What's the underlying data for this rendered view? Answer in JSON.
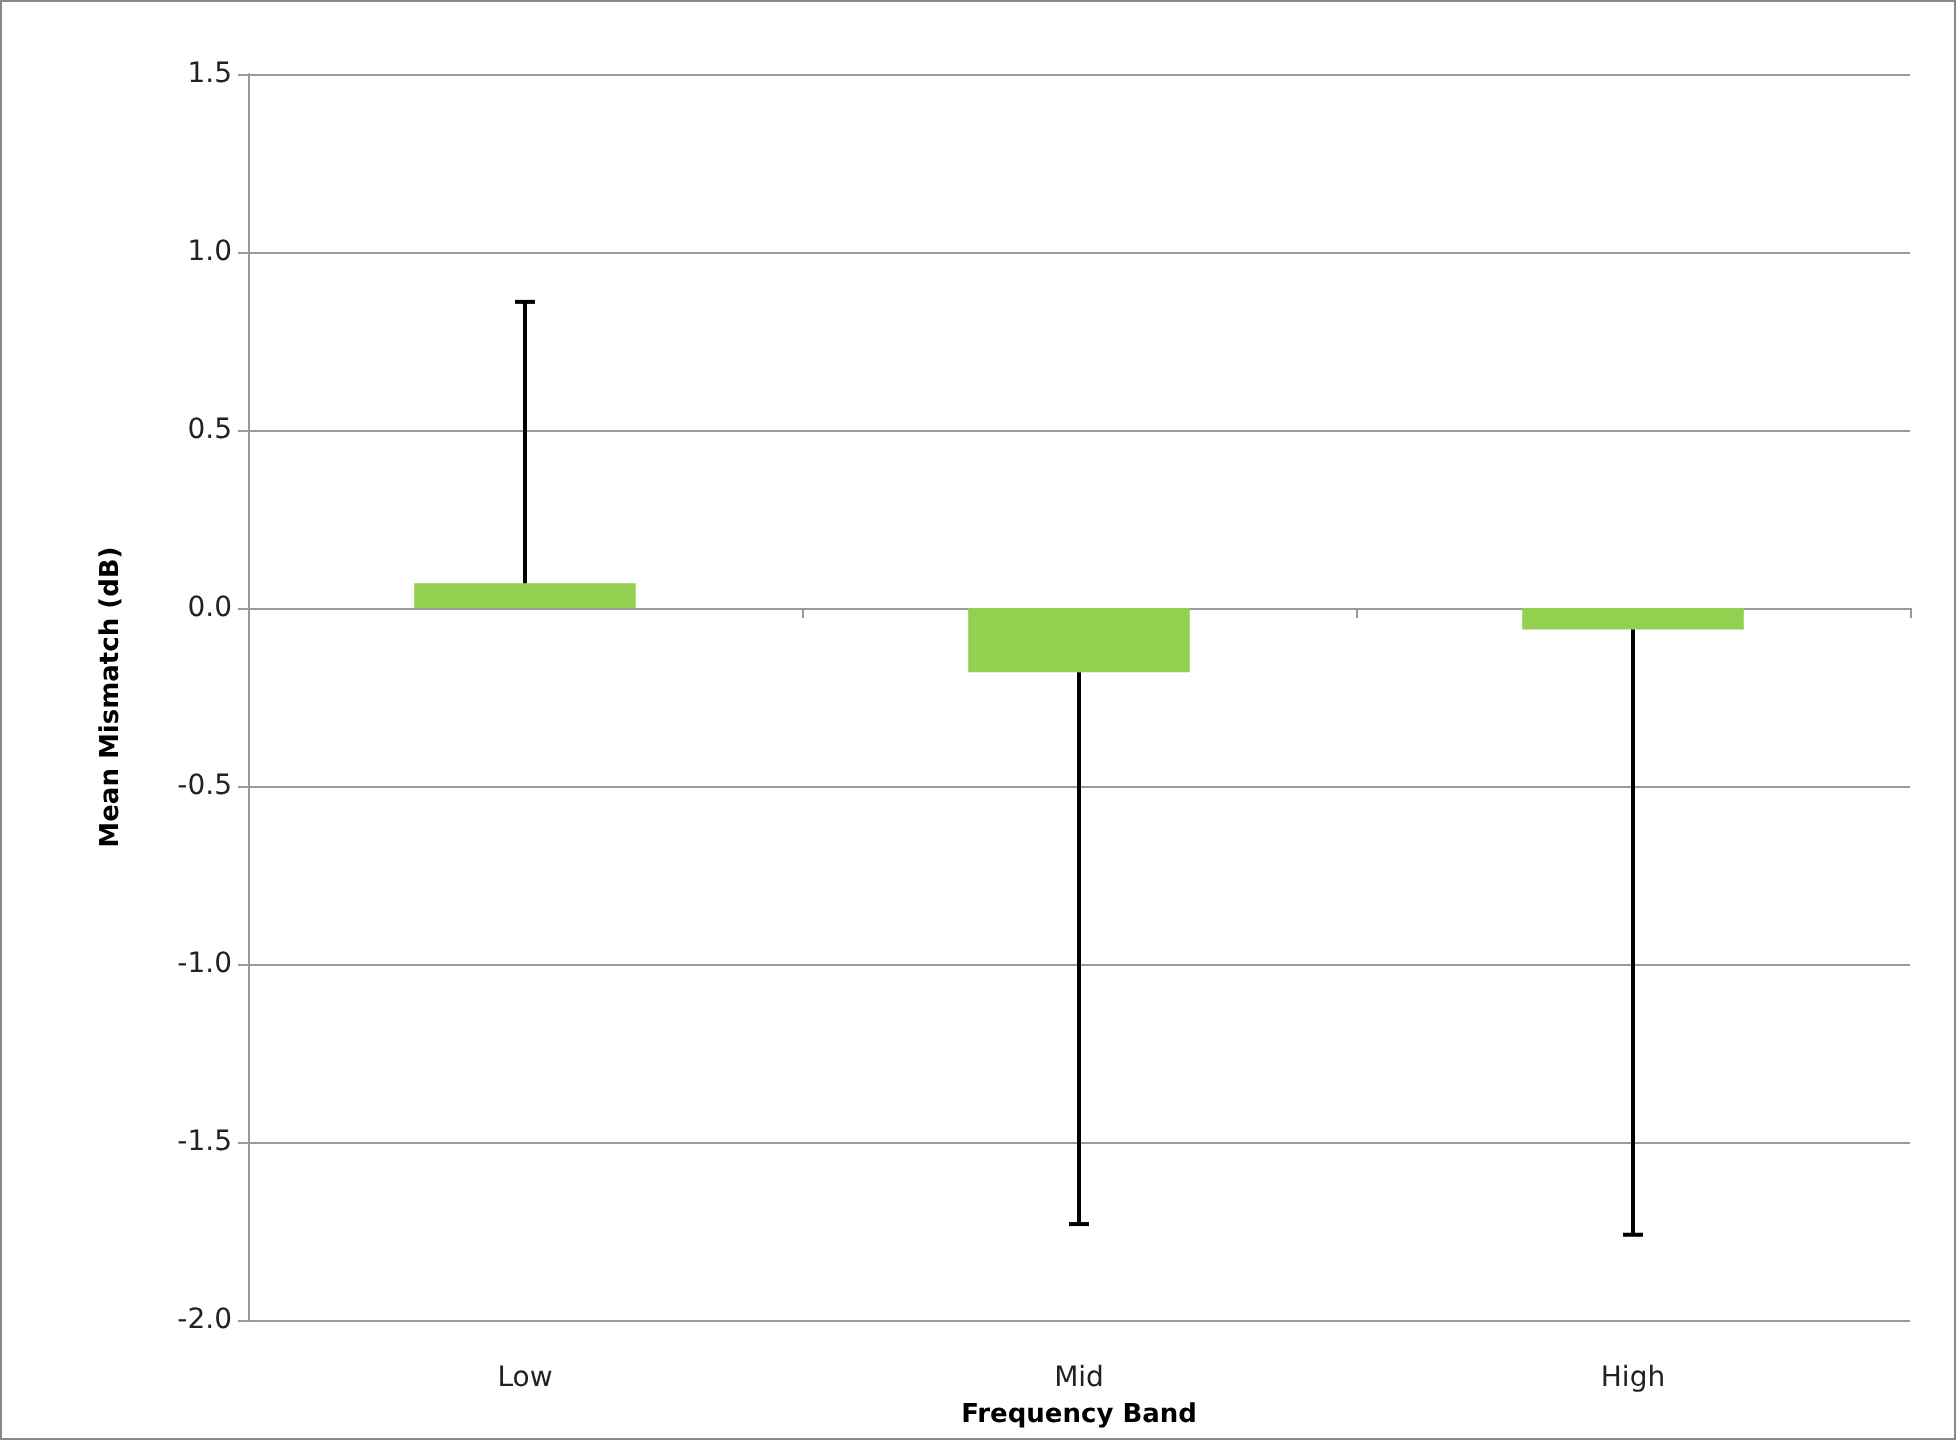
{
  "chart_data": {
    "type": "bar",
    "xlabel": "Frequency Band",
    "ylabel": "Mean Mismatch (dB)",
    "categories": [
      "Low",
      "Mid",
      "High"
    ],
    "series": [
      {
        "color": "#92d050",
        "values": [
          0.07,
          -0.18,
          -0.06
        ],
        "errors": [
          [
            0.07,
            0.86
          ],
          [
            -1.73,
            -0.18
          ],
          [
            -1.76,
            -0.06
          ]
        ]
      }
    ],
    "ylim": [
      -2.0,
      1.5
    ],
    "yticks": [
      {
        "value": -2,
        "label": "-2.0"
      },
      {
        "value": -1.5,
        "label": "-1.5"
      },
      {
        "value": -1,
        "label": "-1.0"
      },
      {
        "value": -0.5,
        "label": "-0.5"
      },
      {
        "value": 0,
        "label": "0.0"
      },
      {
        "value": 0.5,
        "label": "0.5"
      },
      {
        "value": 1,
        "label": "1.0"
      },
      {
        "value": 1.5,
        "label": "1.5"
      }
    ],
    "grid": "y"
  }
}
